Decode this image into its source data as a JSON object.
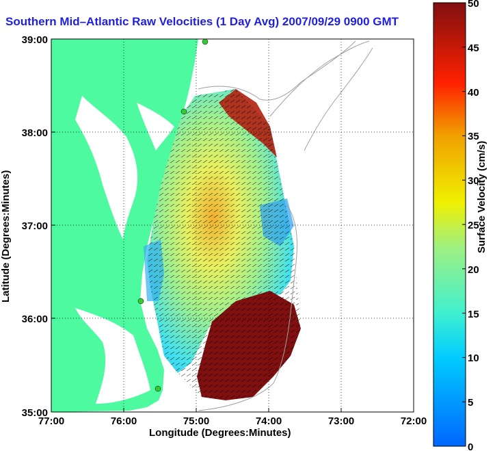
{
  "title": "Southern Mid–Atlantic Raw Velocities (1 Day Avg) 2007/09/29 0900 GMT",
  "map": {
    "xlabel": "Longitude (Degrees:Minutes)",
    "ylabel": "Latitude (Degrees:Minutes)",
    "xticks": [
      "77:00",
      "76:00",
      "75:00",
      "74:00",
      "73:00",
      "72:00"
    ],
    "yticks": [
      "39:00",
      "38:00",
      "37:00",
      "36:00",
      "35:00"
    ]
  },
  "colorbar": {
    "label": "Surface Velocity (cm/s)",
    "ticks": [
      "50",
      "45",
      "40",
      "35",
      "30",
      "25",
      "20",
      "15",
      "10",
      "5",
      "0"
    ],
    "min": 0,
    "max": 50
  },
  "colors": {
    "land": "#4dfaa0",
    "title": "#1f1fe0",
    "station": "#33cc33"
  }
}
